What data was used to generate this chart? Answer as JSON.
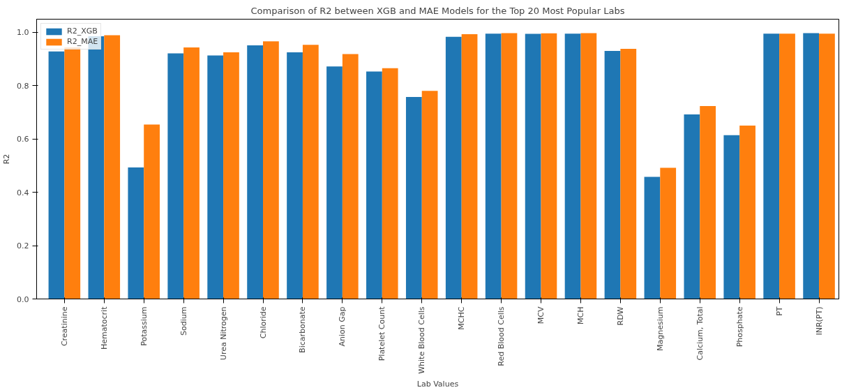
{
  "chart_data": {
    "type": "bar",
    "title": "Comparison of R2 between XGB and MAE Models for the Top 20 Most Popular Labs",
    "xlabel": "Lab Values",
    "ylabel": "R2",
    "categories": [
      "Creatinine",
      "Hematocrit",
      "Potassium",
      "Sodium",
      "Urea Nitrogen",
      "Chloride",
      "Bicarbonate",
      "Anion Gap",
      "Platelet Count",
      "White Blood Cells",
      "MCHC",
      "Red Blood Cells",
      "MCV",
      "MCH",
      "RDW",
      "Magnesium",
      "Calcium, Total",
      "Phosphate",
      "PT",
      "INR(PT)"
    ],
    "series": [
      {
        "name": "R2_XGB",
        "color": "#1f77b4",
        "values": [
          0.928,
          0.985,
          0.493,
          0.921,
          0.913,
          0.951,
          0.925,
          0.872,
          0.853,
          0.757,
          0.983,
          0.995,
          0.994,
          0.995,
          0.93,
          0.458,
          0.692,
          0.614,
          0.995,
          0.997
        ]
      },
      {
        "name": "R2_MAE",
        "color": "#ff7f0e",
        "values": [
          0.943,
          0.989,
          0.654,
          0.943,
          0.925,
          0.966,
          0.953,
          0.918,
          0.865,
          0.78,
          0.993,
          0.997,
          0.996,
          0.997,
          0.938,
          0.492,
          0.723,
          0.65,
          0.995,
          0.995
        ]
      }
    ],
    "ylim": [
      0,
      1.049
    ],
    "yticks": [
      {
        "value": 0,
        "label": "0.0"
      },
      {
        "value": 0.2,
        "label": "0.2"
      },
      {
        "value": 0.4,
        "label": "0.4"
      },
      {
        "value": 0.6,
        "label": "0.6"
      },
      {
        "value": 0.8,
        "label": "0.8"
      },
      {
        "value": 1.0,
        "label": "1.0"
      }
    ],
    "grid": false,
    "legend": "top left"
  }
}
